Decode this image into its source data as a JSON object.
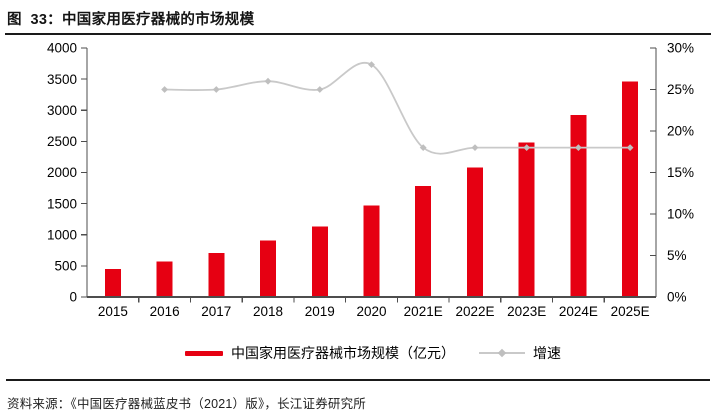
{
  "title": "图  33：中国家用医疗器械的市场规模",
  "source": "资料来源：《中国医疗器械蓝皮书（2021）版》，长江证券研究所",
  "legend": {
    "bar_label": "中国家用医疗器械市场规模（亿元）",
    "line_label": "增速"
  },
  "colors": {
    "bar": "#e60012",
    "line": "#c9c9c9",
    "marker": "#bfbfbf",
    "axis": "#4d4d4d",
    "text": "#000000",
    "rule": "#1a1a1a"
  },
  "chart_data": {
    "type": "bar",
    "combo": "bar+line",
    "title": "图 33：中国家用医疗器械的市场规模",
    "categories": [
      "2015",
      "2016",
      "2017",
      "2018",
      "2019",
      "2020",
      "2021E",
      "2022E",
      "2023E",
      "2024E",
      "2025E"
    ],
    "series": [
      {
        "name": "中国家用医疗器械市场规模（亿元）",
        "type": "bar",
        "axis": "left",
        "unit": "亿元",
        "values": [
          450,
          570,
          710,
          910,
          1130,
          1470,
          1780,
          2080,
          2480,
          2920,
          3460
        ]
      },
      {
        "name": "增速",
        "type": "line",
        "axis": "right",
        "unit": "%",
        "values": [
          null,
          25,
          25,
          26,
          25,
          28,
          18,
          18,
          18,
          18,
          18
        ]
      }
    ],
    "left_axis": {
      "min": 0,
      "max": 4000,
      "step": 500
    },
    "right_axis": {
      "min": 0,
      "max": 30,
      "step": 5,
      "format": "percent"
    },
    "grid": false,
    "legend_position": "bottom"
  }
}
